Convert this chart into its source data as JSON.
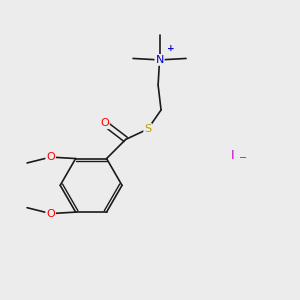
{
  "bg_color": "#ececec",
  "bond_color": "#1a1a1a",
  "atom_colors": {
    "O": "#ff0000",
    "S": "#b8a000",
    "N": "#0000cc",
    "I": "#cc00cc",
    "C": "#1a1a1a"
  }
}
